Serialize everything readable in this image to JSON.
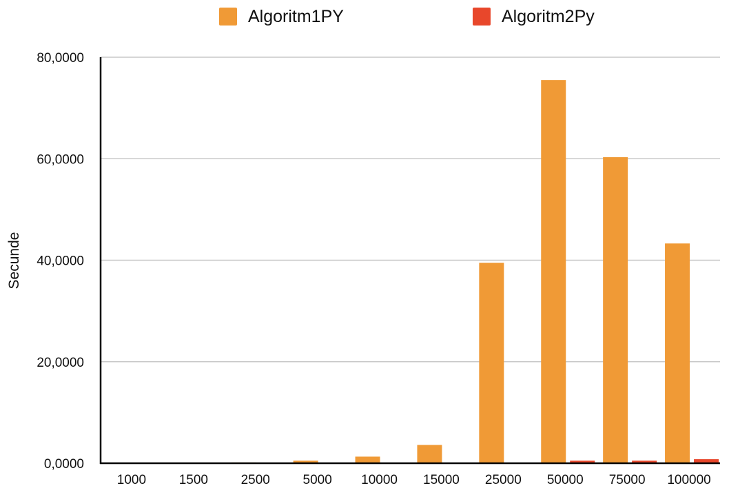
{
  "chart_data": {
    "type": "bar",
    "title": "",
    "xlabel": "",
    "ylabel": "Secunde",
    "ylim": [
      0,
      80
    ],
    "y_ticks": [
      {
        "value": 0,
        "label": "0,0000"
      },
      {
        "value": 20,
        "label": "20,0000"
      },
      {
        "value": 40,
        "label": "40,0000"
      },
      {
        "value": 60,
        "label": "60,0000"
      },
      {
        "value": 80,
        "label": "80,0000"
      }
    ],
    "categories": [
      "1000",
      "1500",
      "2500",
      "5000",
      "10000",
      "15000",
      "25000",
      "50000",
      "75000",
      "100000"
    ],
    "series": [
      {
        "name": "Algoritm1PY",
        "color": "#F09A36",
        "values": [
          0.05,
          0.1,
          0.15,
          0.5,
          1.3,
          3.6,
          39.5,
          75.5,
          60.3,
          43.3
        ]
      },
      {
        "name": "Algoritm2Py",
        "color": "#E8472B",
        "values": [
          0.0,
          0.0,
          0.0,
          0.01,
          0.02,
          0.05,
          0.1,
          0.5,
          0.5,
          0.8
        ]
      }
    ],
    "grid": true,
    "legend_position": "top"
  }
}
